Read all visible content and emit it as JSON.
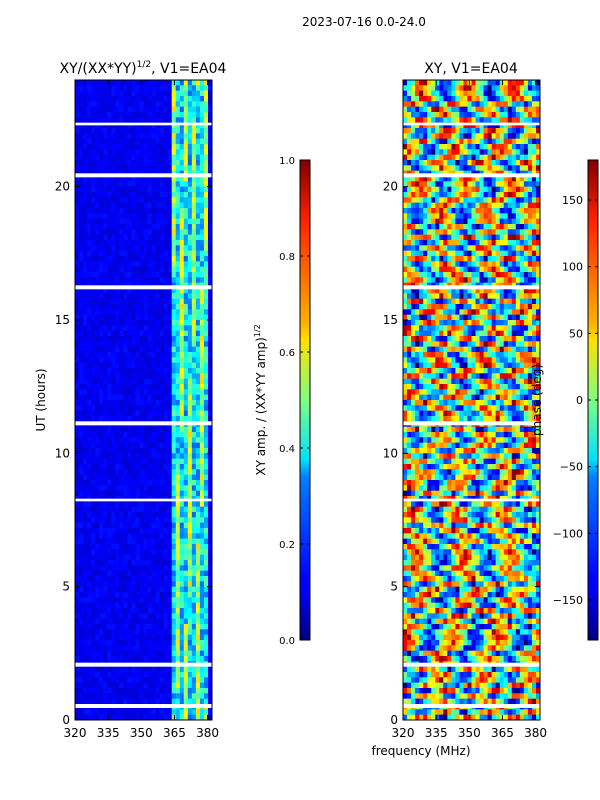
{
  "figure_title": "2023-07-16 0.0-24.0",
  "shared_xlabel": "frequency (MHz)",
  "chart_data": [
    {
      "type": "heatmap",
      "title": "XY/(XX*YY)^1/2, V1=EA04",
      "title_main": "XY/(XX*YY)",
      "title_exp": "1/2",
      "title_tail": ", V1=EA04",
      "xlabel": "frequency (MHz)",
      "ylabel": "UT (hours)",
      "xlim": [
        320,
        382
      ],
      "ylim": [
        0,
        24
      ],
      "xticks": [
        320,
        335,
        350,
        365,
        380
      ],
      "yticks": [
        0,
        5,
        10,
        15,
        20
      ],
      "colorbar": {
        "label": "XY amp. / (XX*YY amp)^1/2",
        "label_main": "XY amp. / (XX*YY amp)",
        "label_exp": "1/2",
        "range": [
          0.0,
          1.0
        ],
        "ticks": [
          "0.0",
          "0.2",
          "0.4",
          "0.6",
          "0.8",
          "1.0"
        ],
        "colormap": "jet"
      },
      "flagged_gaps_hours": [
        [
          0.45,
          0.6
        ],
        [
          2.0,
          2.15
        ],
        [
          8.2,
          8.3
        ],
        [
          11.05,
          11.2
        ],
        [
          16.15,
          16.3
        ],
        [
          20.35,
          20.5
        ],
        [
          22.3,
          22.4
        ]
      ],
      "high_amp_band_mhz": [
        364,
        380
      ]
    },
    {
      "type": "heatmap",
      "title": "XY, V1=EA04",
      "xlabel": "frequency (MHz)",
      "ylabel": "",
      "xlim": [
        320,
        382
      ],
      "ylim": [
        0,
        24
      ],
      "xticks": [
        320,
        335,
        350,
        365,
        380
      ],
      "yticks": [
        0,
        5,
        10,
        15,
        20
      ],
      "colorbar": {
        "label": "phase (deg)",
        "range": [
          -180,
          180
        ],
        "ticks": [
          "−150",
          "−100",
          "−50",
          "0",
          "50",
          "100",
          "150"
        ],
        "colormap": "jet"
      },
      "flagged_gaps_hours": [
        [
          0.45,
          0.6
        ],
        [
          2.0,
          2.15
        ],
        [
          8.2,
          8.3
        ],
        [
          11.05,
          11.2
        ],
        [
          16.15,
          16.3
        ],
        [
          20.35,
          20.5
        ],
        [
          22.3,
          22.4
        ]
      ]
    }
  ],
  "colors": {
    "axis": "#000000",
    "gap": "#ffffff"
  }
}
